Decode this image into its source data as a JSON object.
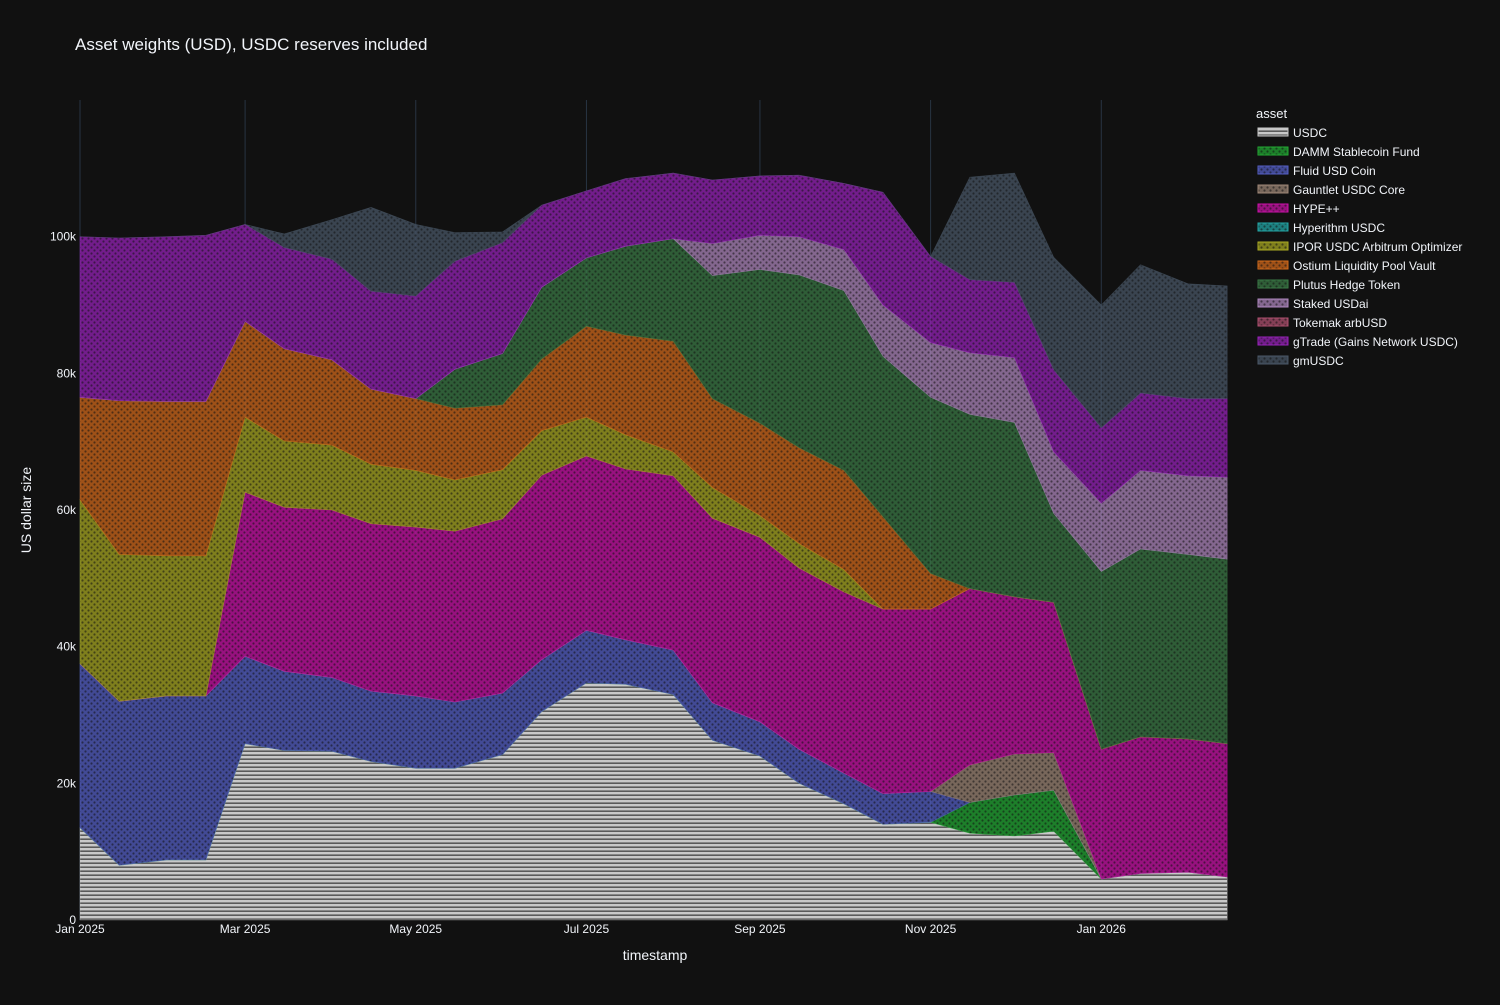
{
  "chart_data": {
    "type": "area",
    "title": "Asset weights (USD), USDC reserves included",
    "xlabel": "timestamp",
    "ylabel": "US dollar size",
    "legend_title": "asset",
    "legend_position": "top-right",
    "x_range": [
      "2025-01-01",
      "2026-02-16"
    ],
    "ylim": [
      0,
      120000
    ],
    "x_ticks": [
      {
        "label": "Jan 2025",
        "date": "2025-01-01"
      },
      {
        "label": "Mar 2025",
        "date": "2025-03-01"
      },
      {
        "label": "May 2025",
        "date": "2025-05-01"
      },
      {
        "label": "Jul 2025",
        "date": "2025-07-01"
      },
      {
        "label": "Sep 2025",
        "date": "2025-09-01"
      },
      {
        "label": "Nov 2025",
        "date": "2025-11-01"
      },
      {
        "label": "Jan 2026",
        "date": "2026-01-01"
      }
    ],
    "y_ticks": [
      {
        "label": "0",
        "value": 0
      },
      {
        "label": "20k",
        "value": 20000
      },
      {
        "label": "40k",
        "value": 40000
      },
      {
        "label": "60k",
        "value": 60000
      },
      {
        "label": "80k",
        "value": 80000
      },
      {
        "label": "100k",
        "value": 100000
      }
    ],
    "x": [
      "2025-01-01",
      "2025-01-15",
      "2025-02-01",
      "2025-02-15",
      "2025-03-01",
      "2025-03-15",
      "2025-04-01",
      "2025-04-15",
      "2025-05-01",
      "2025-05-15",
      "2025-06-01",
      "2025-06-15",
      "2025-07-01",
      "2025-07-15",
      "2025-08-01",
      "2025-08-15",
      "2025-09-01",
      "2025-09-15",
      "2025-10-01",
      "2025-10-15",
      "2025-11-01",
      "2025-11-15",
      "2025-12-01",
      "2025-12-15",
      "2026-01-01",
      "2026-01-15",
      "2026-02-01",
      "2026-02-15"
    ],
    "series": [
      {
        "name": "USDC",
        "color": "#c8c8c8",
        "values": [
          13500,
          8000,
          8800,
          8800,
          25800,
          24800,
          24700,
          23200,
          22200,
          22200,
          24200,
          30500,
          34700,
          34500,
          33000,
          26300,
          24000,
          20000,
          17000,
          14000,
          14300,
          12700,
          12300,
          13000,
          6000,
          6800,
          7000,
          6300
        ]
      },
      {
        "name": "DAMM Stablecoin Fund",
        "color": "#22aa33",
        "values": [
          0,
          0,
          0,
          0,
          0,
          0,
          0,
          0,
          0,
          0,
          0,
          0,
          0,
          0,
          0,
          0,
          0,
          0,
          0,
          0,
          0,
          4500,
          6000,
          6000,
          0,
          0,
          0,
          0
        ]
      },
      {
        "name": "Fluid USD Coin",
        "color": "#5560c8",
        "values": [
          24000,
          24000,
          24000,
          24000,
          12800,
          11600,
          10800,
          10300,
          10600,
          9700,
          9000,
          7600,
          7700,
          6500,
          6500,
          5500,
          5000,
          5000,
          4500,
          4500,
          4500,
          0,
          0,
          0,
          0,
          0,
          0,
          0
        ]
      },
      {
        "name": "Gauntlet USDC Core",
        "color": "#a08878",
        "values": [
          0,
          0,
          0,
          0,
          0,
          0,
          0,
          0,
          0,
          0,
          0,
          0,
          0,
          0,
          0,
          0,
          0,
          0,
          0,
          0,
          0,
          5500,
          6000,
          5500,
          0,
          0,
          0,
          0
        ]
      },
      {
        "name": "HYPE++",
        "color": "#cc11aa",
        "values": [
          0,
          0,
          0,
          0,
          24000,
          24000,
          24500,
          24500,
          24700,
          25000,
          25500,
          27000,
          25500,
          25000,
          25500,
          27000,
          27000,
          26500,
          26500,
          27000,
          26700,
          25800,
          23000,
          22000,
          19000,
          20000,
          19500,
          19500
        ]
      },
      {
        "name": "Hyperithm USDC",
        "color": "#22a8a8",
        "values": [
          0,
          0,
          0,
          0,
          0,
          0,
          0,
          0,
          0,
          0,
          0,
          0,
          0,
          0,
          0,
          0,
          0,
          0,
          0,
          0,
          0,
          0,
          0,
          0,
          0,
          0,
          0,
          0
        ]
      },
      {
        "name": "IPOR USDC Arbitrum Optimizer",
        "color": "#aaaa22",
        "values": [
          24000,
          21500,
          20500,
          20500,
          11000,
          9700,
          9500,
          8700,
          8300,
          7500,
          7200,
          6500,
          5700,
          5000,
          3500,
          4500,
          3200,
          3600,
          3300,
          0,
          0,
          0,
          0,
          0,
          0,
          0,
          0,
          0
        ]
      },
      {
        "name": "Ostium Liquidity Pool Vault",
        "color": "#d46a1a",
        "values": [
          15000,
          22500,
          22600,
          22600,
          14000,
          13500,
          12500,
          11000,
          10500,
          10500,
          9500,
          10500,
          13300,
          14600,
          16200,
          13000,
          13500,
          14000,
          14500,
          13500,
          5200,
          0,
          0,
          0,
          0,
          0,
          0,
          0
        ]
      },
      {
        "name": "Plutus Hedge Token",
        "color": "#3a7a46",
        "values": [
          0,
          0,
          0,
          0,
          0,
          0,
          0,
          0,
          0,
          5700,
          7500,
          10500,
          10000,
          13000,
          15000,
          18000,
          22500,
          25300,
          26300,
          23500,
          25800,
          25500,
          25500,
          13000,
          26000,
          27500,
          27000,
          27000
        ]
      },
      {
        "name": "Staked USDai",
        "color": "#b088c0",
        "values": [
          0,
          0,
          0,
          0,
          0,
          0,
          0,
          0,
          0,
          0,
          0,
          0,
          0,
          0,
          0,
          4700,
          5000,
          5600,
          6000,
          7500,
          8000,
          9000,
          9500,
          9000,
          10000,
          11500,
          11500,
          12000
        ]
      },
      {
        "name": "Tokemak arbUSD",
        "color": "#b05070",
        "values": [
          0,
          0,
          0,
          0,
          0,
          0,
          0,
          0,
          0,
          0,
          0,
          0,
          0,
          0,
          0,
          0,
          0,
          0,
          0,
          0,
          0,
          0,
          0,
          0,
          0,
          0,
          0,
          0
        ]
      },
      {
        "name": "gTrade (Gains Network USDC)",
        "color": "#9922bb",
        "values": [
          23500,
          23800,
          24100,
          24300,
          14200,
          14800,
          14700,
          14300,
          15000,
          15800,
          16200,
          12000,
          9800,
          9900,
          9600,
          9300,
          8700,
          9000,
          9700,
          16500,
          12600,
          10700,
          11000,
          12000,
          11000,
          11300,
          11300,
          11500
        ]
      },
      {
        "name": "gmUSDC",
        "color": "#4a5868",
        "values": [
          0,
          0,
          0,
          0,
          0,
          2000,
          5800,
          12300,
          10500,
          4200,
          1600,
          0,
          0,
          0,
          0,
          0,
          0,
          0,
          0,
          0,
          0,
          15000,
          16000,
          16500,
          18000,
          18800,
          16800,
          16500
        ]
      }
    ]
  }
}
